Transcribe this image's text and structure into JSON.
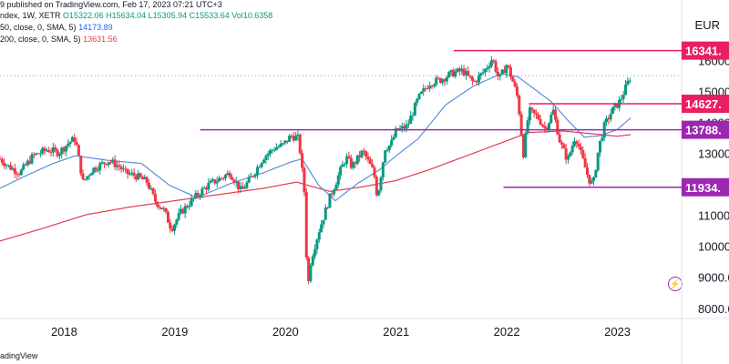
{
  "header": {
    "line1": "9 published on TradingView.com, Feb 17, 2023 07:21 UTC+3",
    "line2_name": "ndex, 1W, XETR",
    "line2_ohlc": "O15322.06 H15634.04 L15305.94 C15533.64 Vol10.6358",
    "ma50_label": "50, close, 0, SMA, 5)",
    "ma50_value": "14173.89",
    "ma200_label": "200, close, 0, SMA, 5)",
    "ma200_value": "13631.56"
  },
  "currency": "EUR",
  "footer": "adingView",
  "colors": {
    "up": "#089981",
    "down": "#f23645",
    "ma50": "#5b8fd6",
    "ma200": "#e53950",
    "resistance": "#e91e63",
    "support": "#9c27b0",
    "text": "#131722"
  },
  "chart_data": {
    "type": "candlestick",
    "title": "",
    "ylim": [
      7700,
      16800
    ],
    "y_ticks": [
      8000,
      9000,
      10000,
      11000,
      12000,
      13000,
      14000,
      15000,
      16000
    ],
    "y_tick_labels": [
      "8000.00",
      "9000.00",
      "10000.00",
      "11000.00",
      "12000.00",
      "13000.00",
      "14000.00",
      "15000.00",
      "16000.00"
    ],
    "x_tick_labels": [
      "2018",
      "2019",
      "2020",
      "2021",
      "2022",
      "2023"
    ],
    "x_tick_values": [
      2018.0,
      2019.0,
      2020.0,
      2021.0,
      2022.0,
      2023.0
    ],
    "xlim": [
      2017.42,
      2023.58
    ],
    "last_close": 15533.64,
    "levels": [
      {
        "value": 16341,
        "label": "16341.",
        "color": "#e91e63",
        "from": 2021.52
      },
      {
        "value": 14627,
        "label": "14627.",
        "color": "#e91e63",
        "from": 2022.2
      },
      {
        "value": 13788,
        "label": "13788.",
        "color": "#9c27b0",
        "from": 2019.23
      },
      {
        "value": 11934,
        "label": "11934.",
        "color": "#9c27b0",
        "from": 2021.97
      }
    ],
    "price_anchors": [
      [
        2017.42,
        12850
      ],
      [
        2017.5,
        12600
      ],
      [
        2017.6,
        12400
      ],
      [
        2017.72,
        12950
      ],
      [
        2017.85,
        13150
      ],
      [
        2017.95,
        13050
      ],
      [
        2018.05,
        13400
      ],
      [
        2018.1,
        13500
      ],
      [
        2018.17,
        12100
      ],
      [
        2018.25,
        12500
      ],
      [
        2018.4,
        12800
      ],
      [
        2018.5,
        12600
      ],
      [
        2018.55,
        12400
      ],
      [
        2018.65,
        12300
      ],
      [
        2018.75,
        12100
      ],
      [
        2018.82,
        11500
      ],
      [
        2018.9,
        11200
      ],
      [
        2018.97,
        10600
      ],
      [
        2019.05,
        11100
      ],
      [
        2019.15,
        11500
      ],
      [
        2019.3,
        12000
      ],
      [
        2019.4,
        12200
      ],
      [
        2019.5,
        12400
      ],
      [
        2019.6,
        11800
      ],
      [
        2019.7,
        12300
      ],
      [
        2019.8,
        12900
      ],
      [
        2019.9,
        13200
      ],
      [
        2019.98,
        13300
      ],
      [
        2020.05,
        13600
      ],
      [
        2020.12,
        13500
      ],
      [
        2020.17,
        11800
      ],
      [
        2020.2,
        8600
      ],
      [
        2020.23,
        9600
      ],
      [
        2020.3,
        10500
      ],
      [
        2020.4,
        11600
      ],
      [
        2020.5,
        12500
      ],
      [
        2020.55,
        12900
      ],
      [
        2020.6,
        12600
      ],
      [
        2020.7,
        13100
      ],
      [
        2020.8,
        12400
      ],
      [
        2020.83,
        11600
      ],
      [
        2020.9,
        13200
      ],
      [
        2020.95,
        13300
      ],
      [
        2021.0,
        13750
      ],
      [
        2021.1,
        13900
      ],
      [
        2021.2,
        14800
      ],
      [
        2021.3,
        15300
      ],
      [
        2021.4,
        15400
      ],
      [
        2021.5,
        15600
      ],
      [
        2021.6,
        15700
      ],
      [
        2021.7,
        15300
      ],
      [
        2021.8,
        15700
      ],
      [
        2021.87,
        16100
      ],
      [
        2021.93,
        15400
      ],
      [
        2022.0,
        15900
      ],
      [
        2022.05,
        15400
      ],
      [
        2022.1,
        14800
      ],
      [
        2022.15,
        13000
      ],
      [
        2022.2,
        14400
      ],
      [
        2022.28,
        14200
      ],
      [
        2022.35,
        13800
      ],
      [
        2022.42,
        14400
      ],
      [
        2022.48,
        13400
      ],
      [
        2022.55,
        12800
      ],
      [
        2022.62,
        13600
      ],
      [
        2022.68,
        12900
      ],
      [
        2022.74,
        12200
      ],
      [
        2022.78,
        12000
      ],
      [
        2022.83,
        13200
      ],
      [
        2022.88,
        13900
      ],
      [
        2022.95,
        14400
      ],
      [
        2023.02,
        14700
      ],
      [
        2023.07,
        15100
      ],
      [
        2023.12,
        15533.64
      ]
    ],
    "sma50_anchors": [
      [
        2017.42,
        11900
      ],
      [
        2017.65,
        12300
      ],
      [
        2017.9,
        12700
      ],
      [
        2018.1,
        12950
      ],
      [
        2018.4,
        12800
      ],
      [
        2018.7,
        12700
      ],
      [
        2018.95,
        12000
      ],
      [
        2019.2,
        11600
      ],
      [
        2019.5,
        12050
      ],
      [
        2019.8,
        12400
      ],
      [
        2020.05,
        12750
      ],
      [
        2020.15,
        12850
      ],
      [
        2020.3,
        12000
      ],
      [
        2020.45,
        11500
      ],
      [
        2020.65,
        12050
      ],
      [
        2020.85,
        12500
      ],
      [
        2021.0,
        12950
      ],
      [
        2021.2,
        13500
      ],
      [
        2021.45,
        14600
      ],
      [
        2021.7,
        15200
      ],
      [
        2021.95,
        15600
      ],
      [
        2022.1,
        15500
      ],
      [
        2022.25,
        15100
      ],
      [
        2022.4,
        14700
      ],
      [
        2022.55,
        14100
      ],
      [
        2022.7,
        13550
      ],
      [
        2022.85,
        13600
      ],
      [
        2023.0,
        13800
      ],
      [
        2023.12,
        14173.89
      ]
    ],
    "sma200_anchors": [
      [
        2017.42,
        10200
      ],
      [
        2017.8,
        10600
      ],
      [
        2018.2,
        11050
      ],
      [
        2018.6,
        11300
      ],
      [
        2019.0,
        11500
      ],
      [
        2019.4,
        11700
      ],
      [
        2019.8,
        11900
      ],
      [
        2020.1,
        12100
      ],
      [
        2020.4,
        11800
      ],
      [
        2020.7,
        11950
      ],
      [
        2021.0,
        12150
      ],
      [
        2021.3,
        12500
      ],
      [
        2021.6,
        12900
      ],
      [
        2021.9,
        13300
      ],
      [
        2022.2,
        13700
      ],
      [
        2022.5,
        13750
      ],
      [
        2022.8,
        13650
      ],
      [
        2023.0,
        13580
      ],
      [
        2023.12,
        13631.56
      ]
    ]
  }
}
